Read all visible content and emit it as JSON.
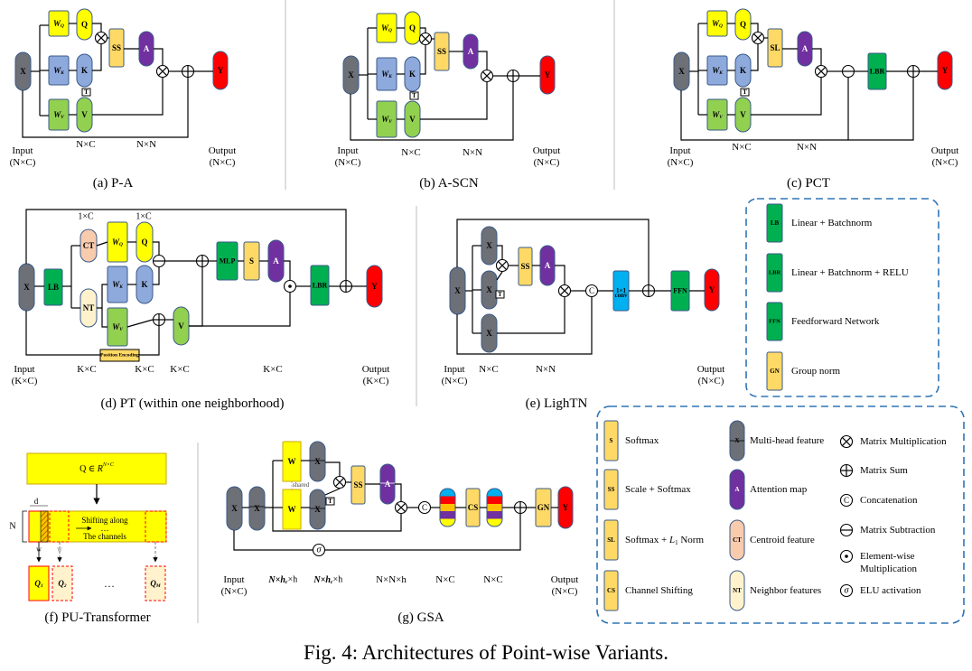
{
  "caption": "Fig. 4: Architectures of Point-wise Variants.",
  "colors": {
    "x": "#6d7076",
    "q": "#ffff00",
    "k": "#8ea9db",
    "v": "#92d050",
    "s": "#ffd966",
    "a": "#7030a0",
    "y": "#ff0000",
    "lb": "#00b050",
    "ct": "#f8cbad",
    "nt": "#fff2cc",
    "conv": "#00b0f0",
    "dash": "#2e75b6"
  },
  "labels": {
    "x": "X",
    "y": "Y",
    "q": "Q",
    "k": "K",
    "v": "V",
    "a": "A",
    "ss": "SS",
    "sl": "SL",
    "s": "S",
    "lbr": "LBR",
    "lb": "LB",
    "mlp": "MLP",
    "ffn": "FFN",
    "gn": "GN",
    "ct": "CT",
    "nt": "NT",
    "w": "W",
    "t": "T",
    "c": "C",
    "sigma": "σ",
    "cs": "CS",
    "conv1": "1×1",
    "conv2": "conv",
    "shared": "shared",
    "pos_enc": "Position Encoding",
    "wq": "W",
    "wq_sub": "Q",
    "wk": "W",
    "wk_sub": "K",
    "wv": "W",
    "wv_sub": "V"
  },
  "dims": {
    "input": "Input",
    "output": "Output",
    "nc": "N×C",
    "nn": "N×N",
    "nc_p": "(N×C)",
    "kc": "K×C",
    "kc_p": "(K×C)",
    "one_c": "1×C",
    "nnh": "N×N×h",
    "nhch_a": "N×",
    "nhch_h": "h",
    "nhch_c": "c",
    "nhch_b": "×h"
  },
  "panels": {
    "a": "(a) P-A",
    "b": "(b) A-SCN",
    "c": "(c) PCT",
    "d": "(d) PT (within one neighborhood)",
    "e": "(e) LighTN",
    "f": "(f) PU-Transformer",
    "g": "(g) GSA"
  },
  "legend1": [
    {
      "tag": "LB",
      "text": "Linear + Batchnorm"
    },
    {
      "tag": "LBR",
      "text": "Linear + Batchnorm + RELU"
    },
    {
      "tag": "FFN",
      "text": "Feedforward Network"
    },
    {
      "tag": "GN",
      "text": "Group norm"
    }
  ],
  "legend2_col1": [
    {
      "tag": "S",
      "text": "Softmax"
    },
    {
      "tag": "SS",
      "text": "Scale + Softmax"
    },
    {
      "tag": "SL",
      "text_a": "Softmax + ",
      "text_b": "L",
      "text_c": "1",
      "text_d": "Norm"
    },
    {
      "tag": "CS",
      "text": "Channel Shifting"
    }
  ],
  "legend2_col2": [
    {
      "tag": "X",
      "text": "Multi-head feature"
    },
    {
      "tag": "A",
      "text": "Attention map"
    },
    {
      "tag": "CT",
      "text": "Centroid feature"
    },
    {
      "tag": "NT",
      "text": "Neighbor features"
    }
  ],
  "legend2_col3": [
    {
      "sym": "⊗",
      "text": "Matrix Multiplication"
    },
    {
      "sym": "⊕",
      "text": "Matrix Sum"
    },
    {
      "sym": "c",
      "text": "Concatenation"
    },
    {
      "sym": "⊖",
      "text": "Matrix Subtraction"
    },
    {
      "sym": "⊙",
      "text": "Element-wise",
      "text2": "Multiplication"
    },
    {
      "sym": "σ",
      "text": "ELU activation"
    }
  ],
  "pu": {
    "formula_a": "Q ∈ ",
    "formula_r": "R",
    "formula_sup": "N×C",
    "shift1": "Shifting along",
    "shift2": "…",
    "shift3": "The channels",
    "n": "N",
    "d": "d",
    "w": "w",
    "q1": "Q",
    "q1_sub": "1",
    "q2": "Q",
    "q2_sub": "2",
    "qm": "Q",
    "qm_sub": "M",
    "dots": "…"
  }
}
